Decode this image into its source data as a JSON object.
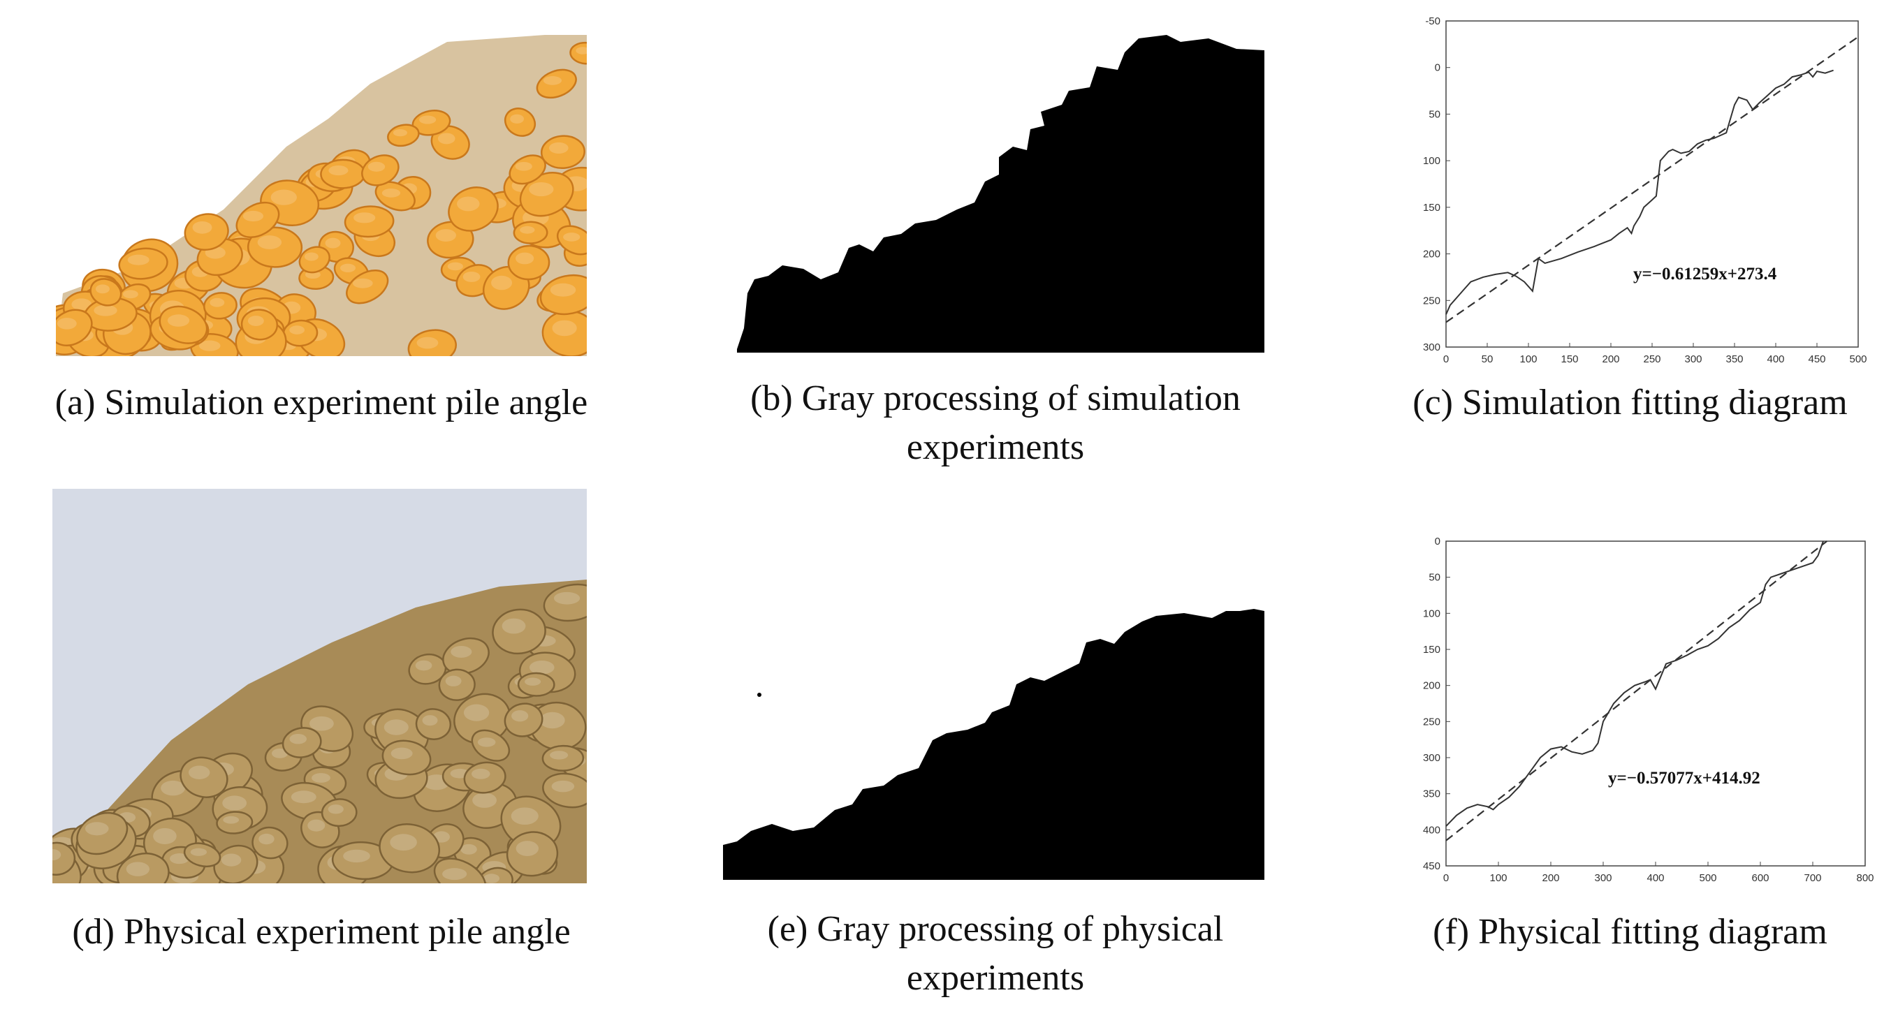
{
  "panels": {
    "a": {
      "caption": "(a) Simulation experiment pile angle"
    },
    "b": {
      "caption_line1": "(b) Gray processing of simulation",
      "caption_line2": "experiments"
    },
    "c": {
      "caption": "(c) Simulation fitting diagram"
    },
    "d": {
      "caption": "(d) Physical experiment pile angle"
    },
    "e": {
      "caption_line1": "(e) Gray processing of physical",
      "caption_line2": "experiments"
    },
    "f": {
      "caption": "(f) Physical fitting diagram"
    }
  },
  "colors": {
    "sim_shell": "#f2a93a",
    "sim_shell_dark": "#c9781c",
    "sim_debris": "#d8c3a0",
    "phys_shell": "#b99a62",
    "phys_shell_dark": "#7d6236",
    "phys_background": "#d6dbe6",
    "silhouette": "#000000"
  },
  "chart_data": [
    {
      "id": "simulation-fit",
      "type": "line",
      "annotation": "y=−0.61259x+273.4",
      "xlim": [
        0,
        500
      ],
      "ylim": [
        -50,
        300
      ],
      "y_inverted": true,
      "x_ticks": [
        "0",
        "50",
        "100",
        "150",
        "200",
        "250",
        "300",
        "350",
        "400",
        "450",
        "500"
      ],
      "y_ticks": [
        "-50",
        "0",
        "50",
        "100",
        "150",
        "200",
        "250",
        "300"
      ],
      "fit": {
        "slope": -0.61259,
        "intercept": 273.4,
        "x_range": [
          0,
          500
        ]
      },
      "series": [
        {
          "x": [
            0,
            5,
            10,
            15,
            20,
            30,
            45,
            60,
            75,
            85,
            95,
            105,
            112,
            120,
            140,
            160,
            180,
            200,
            210,
            220,
            225,
            228,
            235,
            240,
            250,
            255,
            260,
            268,
            270,
            275,
            285,
            295,
            305,
            315,
            325,
            340,
            350,
            355,
            365,
            372,
            380,
            390,
            400,
            410,
            420,
            430,
            440,
            445,
            450,
            460,
            470
          ],
          "y": [
            265,
            255,
            250,
            245,
            240,
            230,
            225,
            222,
            220,
            224,
            230,
            240,
            205,
            210,
            205,
            198,
            192,
            185,
            178,
            172,
            178,
            170,
            160,
            150,
            142,
            138,
            100,
            92,
            90,
            88,
            92,
            90,
            82,
            78,
            76,
            70,
            40,
            32,
            35,
            45,
            38,
            30,
            22,
            18,
            10,
            8,
            5,
            10,
            4,
            6,
            3
          ]
        }
      ]
    },
    {
      "id": "physical-fit",
      "type": "line",
      "annotation": "y=−0.57077x+414.92",
      "xlim": [
        0,
        800
      ],
      "ylim": [
        0,
        450
      ],
      "y_inverted": true,
      "x_ticks": [
        "0",
        "100",
        "200",
        "300",
        "400",
        "500",
        "600",
        "700",
        "800"
      ],
      "y_ticks": [
        "0",
        "50",
        "100",
        "150",
        "200",
        "250",
        "300",
        "350",
        "400",
        "450"
      ],
      "fit": {
        "slope": -0.57077,
        "intercept": 414.92,
        "x_range": [
          0,
          800
        ]
      },
      "series": [
        {
          "x": [
            0,
            20,
            40,
            60,
            80,
            90,
            100,
            120,
            140,
            160,
            180,
            200,
            220,
            240,
            260,
            280,
            290,
            300,
            320,
            340,
            360,
            380,
            390,
            400,
            420,
            440,
            460,
            480,
            500,
            520,
            540,
            560,
            580,
            600,
            610,
            620,
            640,
            660,
            680,
            700,
            710,
            720
          ],
          "y": [
            395,
            380,
            370,
            365,
            368,
            372,
            365,
            355,
            340,
            320,
            300,
            288,
            285,
            292,
            295,
            290,
            280,
            250,
            225,
            210,
            200,
            195,
            192,
            205,
            170,
            165,
            158,
            150,
            145,
            135,
            120,
            110,
            95,
            85,
            60,
            50,
            45,
            40,
            35,
            30,
            20,
            0
          ]
        }
      ]
    }
  ]
}
